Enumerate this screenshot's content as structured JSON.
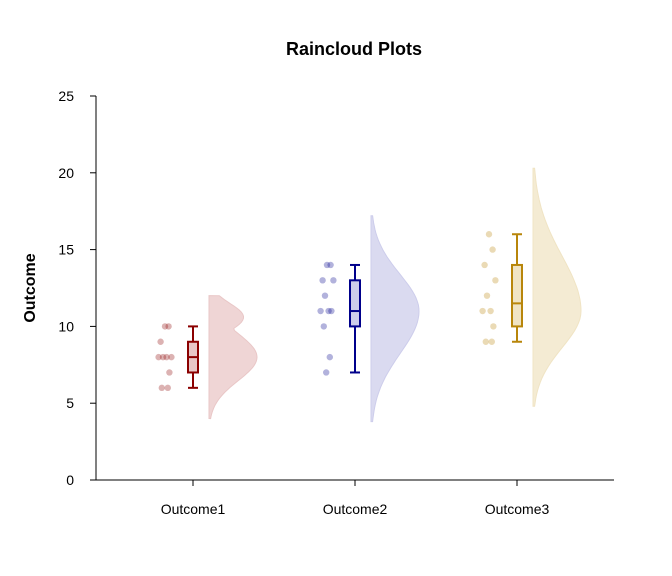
{
  "chart_data": {
    "type": "raincloud",
    "title": "Raincloud Plots",
    "xlabel": "",
    "ylabel": "Outcome",
    "ylim": [
      0,
      25
    ],
    "yticks": [
      0,
      5,
      10,
      15,
      20,
      25
    ],
    "categories": [
      "Outcome1",
      "Outcome2",
      "Outcome3"
    ],
    "grid": false,
    "series": [
      {
        "category": "Outcome1",
        "color": "#8b0000",
        "fill": "#e9c7c7",
        "points": [
          10,
          10,
          9,
          8,
          8,
          8,
          8,
          7,
          6,
          6
        ],
        "box": {
          "whisker_low": 6,
          "q1": 7,
          "median": 8,
          "q3": 9,
          "whisker_high": 10
        },
        "density": {
          "min": 4,
          "max": 12,
          "mode": 8
        }
      },
      {
        "category": "Outcome2",
        "color": "#00008b",
        "fill": "#cdcdeb",
        "points": [
          14,
          14,
          13,
          13,
          12,
          11,
          11,
          11,
          10,
          8,
          7
        ],
        "box": {
          "whisker_low": 7,
          "q1": 10,
          "median": 11,
          "q3": 13,
          "whisker_high": 14
        },
        "density": {
          "min": 3.8,
          "max": 17.2,
          "mode": 11
        }
      },
      {
        "category": "Outcome3",
        "color": "#b8860b",
        "fill": "#f0e4c4",
        "points": [
          16,
          15,
          14,
          13,
          12,
          11,
          11,
          10,
          9,
          9
        ],
        "box": {
          "whisker_low": 9,
          "q1": 10,
          "median": 11.5,
          "q3": 14,
          "whisker_high": 16
        },
        "density": {
          "min": 4.8,
          "max": 20.3,
          "mode": 11
        }
      }
    ]
  }
}
